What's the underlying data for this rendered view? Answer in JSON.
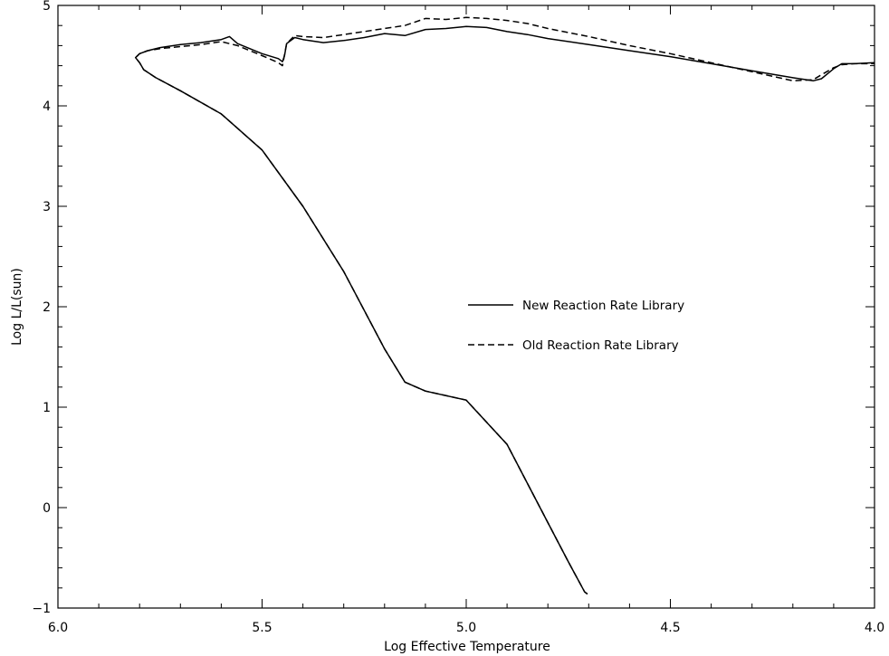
{
  "chart_data": {
    "type": "line",
    "title": "",
    "xlabel": "Log Effective Temperature",
    "ylabel": "Log  L/L(sun)",
    "xlim": [
      6.0,
      4.0
    ],
    "ylim": [
      -1.0,
      5.0
    ],
    "x_axis_reversed": true,
    "x_ticks": [
      6.0,
      5.5,
      5.0,
      4.5,
      4.0
    ],
    "x_tick_labels": [
      "6.0",
      "5.5",
      "5.0",
      "4.5",
      "4.0"
    ],
    "y_ticks": [
      -1,
      0,
      1,
      2,
      3,
      4,
      5
    ],
    "y_tick_labels": [
      "−1",
      "0",
      "1",
      "2",
      "3",
      "4",
      "5"
    ],
    "grid": false,
    "legend_position": "center-right",
    "series": [
      {
        "name": "New Reaction Rate Library",
        "style": "solid",
        "color": "#000000",
        "points": [
          [
            4.703,
            -0.86
          ],
          [
            4.71,
            -0.84
          ],
          [
            4.75,
            -0.54
          ],
          [
            4.8,
            -0.15
          ],
          [
            4.9,
            0.63
          ],
          [
            5.0,
            1.07
          ],
          [
            5.1,
            1.16
          ],
          [
            5.15,
            1.25
          ],
          [
            5.2,
            1.58
          ],
          [
            5.3,
            2.35
          ],
          [
            5.4,
            3.0
          ],
          [
            5.5,
            3.56
          ],
          [
            5.6,
            3.92
          ],
          [
            5.7,
            4.15
          ],
          [
            5.76,
            4.28
          ],
          [
            5.79,
            4.36
          ],
          [
            5.8,
            4.43
          ],
          [
            5.81,
            4.48
          ],
          [
            5.8,
            4.52
          ],
          [
            5.78,
            4.55
          ],
          [
            5.75,
            4.58
          ],
          [
            5.7,
            4.61
          ],
          [
            5.65,
            4.63
          ],
          [
            5.6,
            4.66
          ],
          [
            5.58,
            4.69
          ],
          [
            5.56,
            4.62
          ],
          [
            5.5,
            4.52
          ],
          [
            5.46,
            4.47
          ],
          [
            5.45,
            4.44
          ],
          [
            5.445,
            4.5
          ],
          [
            5.44,
            4.62
          ],
          [
            5.42,
            4.68
          ],
          [
            5.4,
            4.66
          ],
          [
            5.35,
            4.63
          ],
          [
            5.3,
            4.65
          ],
          [
            5.25,
            4.68
          ],
          [
            5.2,
            4.72
          ],
          [
            5.15,
            4.7
          ],
          [
            5.1,
            4.76
          ],
          [
            5.05,
            4.77
          ],
          [
            5.0,
            4.79
          ],
          [
            4.95,
            4.78
          ],
          [
            4.9,
            4.74
          ],
          [
            4.85,
            4.71
          ],
          [
            4.8,
            4.67
          ],
          [
            4.7,
            4.61
          ],
          [
            4.6,
            4.55
          ],
          [
            4.5,
            4.49
          ],
          [
            4.4,
            4.42
          ],
          [
            4.3,
            4.35
          ],
          [
            4.2,
            4.28
          ],
          [
            4.15,
            4.25
          ],
          [
            4.13,
            4.27
          ],
          [
            4.1,
            4.37
          ],
          [
            4.08,
            4.42
          ],
          [
            4.05,
            4.42
          ],
          [
            4.0,
            4.43
          ]
        ]
      },
      {
        "name": "Old Reaction Rate Library",
        "style": "dashed",
        "color": "#000000",
        "points": [
          [
            4.703,
            -0.86
          ],
          [
            4.71,
            -0.84
          ],
          [
            4.75,
            -0.54
          ],
          [
            4.8,
            -0.15
          ],
          [
            4.9,
            0.63
          ],
          [
            5.0,
            1.07
          ],
          [
            5.1,
            1.16
          ],
          [
            5.15,
            1.25
          ],
          [
            5.2,
            1.58
          ],
          [
            5.3,
            2.35
          ],
          [
            5.4,
            3.0
          ],
          [
            5.5,
            3.56
          ],
          [
            5.6,
            3.92
          ],
          [
            5.7,
            4.15
          ],
          [
            5.76,
            4.28
          ],
          [
            5.79,
            4.36
          ],
          [
            5.8,
            4.43
          ],
          [
            5.81,
            4.48
          ],
          [
            5.8,
            4.52
          ],
          [
            5.78,
            4.55
          ],
          [
            5.75,
            4.57
          ],
          [
            5.7,
            4.59
          ],
          [
            5.65,
            4.61
          ],
          [
            5.6,
            4.64
          ],
          [
            5.58,
            4.62
          ],
          [
            5.56,
            4.6
          ],
          [
            5.5,
            4.5
          ],
          [
            5.46,
            4.43
          ],
          [
            5.45,
            4.4
          ],
          [
            5.44,
            4.62
          ],
          [
            5.42,
            4.7
          ],
          [
            5.4,
            4.69
          ],
          [
            5.35,
            4.68
          ],
          [
            5.3,
            4.71
          ],
          [
            5.25,
            4.74
          ],
          [
            5.2,
            4.77
          ],
          [
            5.15,
            4.8
          ],
          [
            5.1,
            4.87
          ],
          [
            5.05,
            4.86
          ],
          [
            5.0,
            4.88
          ],
          [
            4.95,
            4.87
          ],
          [
            4.9,
            4.85
          ],
          [
            4.85,
            4.82
          ],
          [
            4.8,
            4.77
          ],
          [
            4.7,
            4.69
          ],
          [
            4.6,
            4.6
          ],
          [
            4.5,
            4.52
          ],
          [
            4.4,
            4.43
          ],
          [
            4.3,
            4.34
          ],
          [
            4.2,
            4.25
          ],
          [
            4.15,
            4.26
          ],
          [
            4.13,
            4.31
          ],
          [
            4.1,
            4.38
          ],
          [
            4.08,
            4.41
          ],
          [
            4.05,
            4.42
          ],
          [
            4.0,
            4.42
          ]
        ]
      }
    ],
    "legend": [
      {
        "label": "New Reaction Rate Library",
        "style": "solid"
      },
      {
        "label": "Old Reaction Rate Library",
        "style": "dashed"
      }
    ]
  }
}
